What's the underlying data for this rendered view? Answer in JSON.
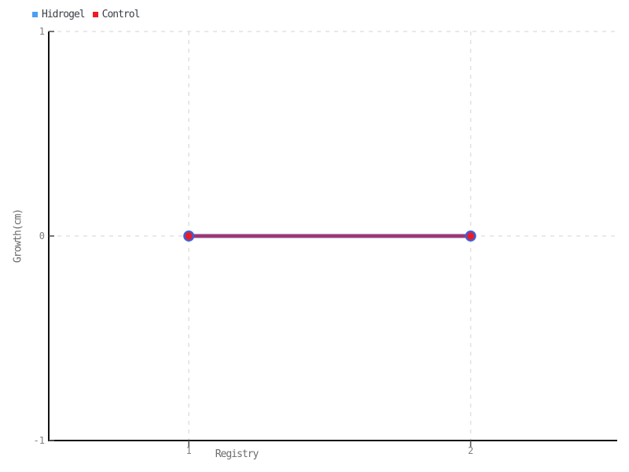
{
  "chart_data": {
    "type": "line",
    "x": [
      1,
      2
    ],
    "series": [
      {
        "name": "Hidrogel",
        "values": [
          0,
          0
        ],
        "color": "#4a9ff5",
        "border": "#3d5fd6"
      },
      {
        "name": "Control",
        "values": [
          0,
          0
        ],
        "color": "#ed1b24",
        "border": "#ed1b24"
      }
    ],
    "title": "",
    "xlabel": "Registry",
    "ylabel": "Growth(cm)",
    "xticks": [
      1,
      2
    ],
    "yticks": [
      1,
      0,
      -1
    ],
    "xlim": [
      0.503,
      2.52
    ],
    "ylim": [
      -1,
      1
    ],
    "grid": "dashed",
    "legend_position": "top-left",
    "colors": {
      "background": "#ffffff",
      "axis": "#111111",
      "gridline": "#e2e2e2",
      "tick_text": "#808080",
      "axis_title_text": "#6b6b6b",
      "legend_text": "#3a3f45"
    }
  }
}
